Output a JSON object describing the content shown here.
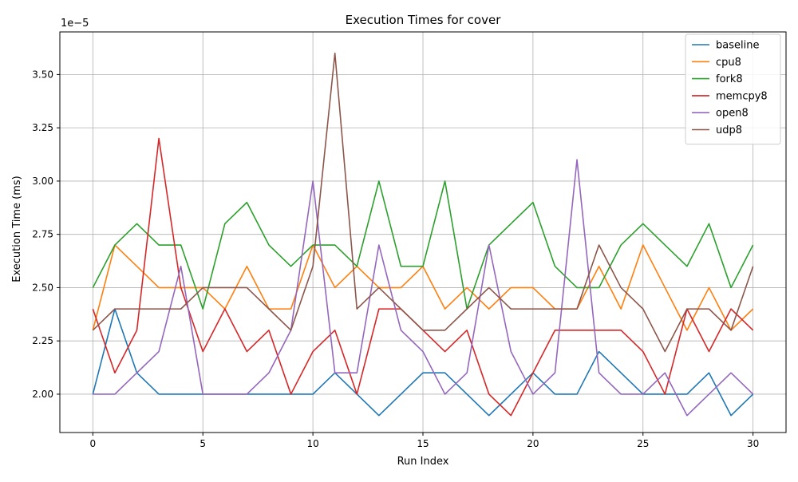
{
  "chart_data": {
    "type": "line",
    "title": "Execution Times for cover",
    "xlabel": "Run Index",
    "ylabel": "Execution Time (ms)",
    "y_offset_label": "1e−5",
    "xlim": [
      -1.5,
      31.5
    ],
    "ylim": [
      1.82,
      3.7
    ],
    "x_ticks": [
      0,
      5,
      10,
      15,
      20,
      25,
      30
    ],
    "y_ticks": [
      2.0,
      2.25,
      2.5,
      2.75,
      3.0,
      3.25,
      3.5
    ],
    "y_tick_labels": [
      "2.00",
      "2.25",
      "2.50",
      "2.75",
      "3.00",
      "3.25",
      "3.50"
    ],
    "grid": true,
    "legend_position": "top-right",
    "x": [
      0,
      1,
      2,
      3,
      4,
      5,
      6,
      7,
      8,
      9,
      10,
      11,
      12,
      13,
      14,
      15,
      16,
      17,
      18,
      19,
      20,
      21,
      22,
      23,
      24,
      25,
      26,
      27,
      28,
      29,
      30
    ],
    "series": [
      {
        "name": "baseline",
        "color": "#1f77b4",
        "values": [
          2.0,
          2.4,
          2.1,
          2.0,
          2.0,
          2.0,
          2.0,
          2.0,
          2.0,
          2.0,
          2.0,
          2.1,
          2.0,
          1.9,
          2.0,
          2.1,
          2.1,
          2.0,
          1.9,
          2.0,
          2.1,
          2.0,
          2.0,
          2.2,
          2.1,
          2.0,
          2.0,
          2.0,
          2.1,
          1.9,
          2.0
        ]
      },
      {
        "name": "cpu8",
        "color": "#ff7f0e",
        "values": [
          2.3,
          2.7,
          2.6,
          2.5,
          2.5,
          2.5,
          2.4,
          2.6,
          2.4,
          2.4,
          2.7,
          2.5,
          2.6,
          2.5,
          2.5,
          2.6,
          2.4,
          2.5,
          2.4,
          2.5,
          2.5,
          2.4,
          2.4,
          2.6,
          2.4,
          2.7,
          2.5,
          2.3,
          2.5,
          2.3,
          2.4
        ]
      },
      {
        "name": "fork8",
        "color": "#2ca02c",
        "values": [
          2.5,
          2.7,
          2.8,
          2.7,
          2.7,
          2.4,
          2.8,
          2.9,
          2.7,
          2.6,
          2.7,
          2.7,
          2.6,
          3.0,
          2.6,
          2.6,
          3.0,
          2.4,
          2.7,
          2.8,
          2.9,
          2.6,
          2.5,
          2.5,
          2.7,
          2.8,
          2.7,
          2.6,
          2.8,
          2.5,
          2.7
        ]
      },
      {
        "name": "memcpy8",
        "color": "#d62728",
        "values": [
          2.4,
          2.1,
          2.3,
          3.2,
          2.5,
          2.2,
          2.4,
          2.2,
          2.3,
          2.0,
          2.2,
          2.3,
          2.0,
          2.4,
          2.4,
          2.3,
          2.2,
          2.3,
          2.0,
          1.9,
          2.1,
          2.3,
          2.3,
          2.3,
          2.3,
          2.2,
          2.0,
          2.4,
          2.2,
          2.4,
          2.3
        ]
      },
      {
        "name": "open8",
        "color": "#9467bd",
        "values": [
          2.0,
          2.0,
          2.1,
          2.2,
          2.6,
          2.0,
          2.0,
          2.0,
          2.1,
          2.3,
          3.0,
          2.1,
          2.1,
          2.7,
          2.3,
          2.2,
          2.0,
          2.1,
          2.7,
          2.2,
          2.0,
          2.1,
          3.1,
          2.1,
          2.0,
          2.0,
          2.1,
          1.9,
          2.0,
          2.1,
          2.0
        ]
      },
      {
        "name": "udp8",
        "color": "#8c564b",
        "values": [
          2.3,
          2.4,
          2.4,
          2.4,
          2.4,
          2.5,
          2.5,
          2.5,
          2.4,
          2.3,
          2.6,
          3.6,
          2.4,
          2.5,
          2.4,
          2.3,
          2.3,
          2.4,
          2.5,
          2.4,
          2.4,
          2.4,
          2.4,
          2.7,
          2.5,
          2.4,
          2.2,
          2.4,
          2.4,
          2.3,
          2.6
        ]
      }
    ]
  }
}
